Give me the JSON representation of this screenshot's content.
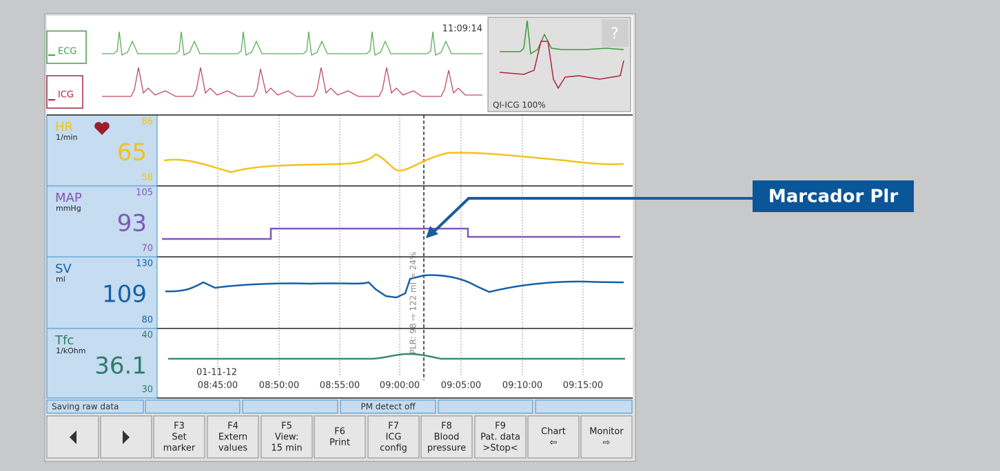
{
  "clock": "11:09:14",
  "waves": [
    {
      "label": "ECG"
    },
    {
      "label": "ICG"
    }
  ],
  "quality": "QI-ICG 100%",
  "help": "?",
  "params": [
    {
      "name": "HR",
      "unit": "1/min",
      "value": 65,
      "max": 86,
      "min": 58,
      "color": "#f2c21b"
    },
    {
      "name": "MAP",
      "unit": "mmHg",
      "value": 93,
      "max": 105,
      "min": 70,
      "color": "#7e57b6"
    },
    {
      "name": "SV",
      "unit": "ml",
      "value": 109,
      "max": 130,
      "min": 80,
      "color": "#1560a8"
    },
    {
      "name": "Tfc",
      "unit": "1/kOhm",
      "value": 36.1,
      "max": 40,
      "min": 30,
      "color": "#2e7d6a"
    }
  ],
  "time_axis": {
    "date": "01-11-12",
    "ticks": [
      "08:45:00",
      "08:50:00",
      "08:55:00",
      "09:00:00",
      "09:05:00",
      "09:10:00",
      "09:15:00"
    ]
  },
  "marker_label": "PLR: 98 ⇨ 122 ml = 24%",
  "callout": "Marcador Plr",
  "status": {
    "left": "Saving raw data",
    "middle": "PM detect off"
  },
  "buttons": [
    {
      "key": "F3",
      "lines": [
        "Set",
        "marker"
      ]
    },
    {
      "key": "F4",
      "lines": [
        "Extern",
        "values"
      ]
    },
    {
      "key": "F5",
      "lines": [
        "View:",
        "15 min"
      ]
    },
    {
      "key": "F6",
      "lines": [
        "Print"
      ]
    },
    {
      "key": "F7",
      "lines": [
        "ICG",
        "config"
      ]
    },
    {
      "key": "F8",
      "lines": [
        "Blood",
        "pressure"
      ]
    },
    {
      "key": "F9",
      "lines": [
        "Pat. data",
        ">Stop<"
      ]
    },
    {
      "lines": [
        "Chart",
        "⇦"
      ]
    },
    {
      "lines": [
        "Monitor",
        "⇨"
      ]
    }
  ]
}
